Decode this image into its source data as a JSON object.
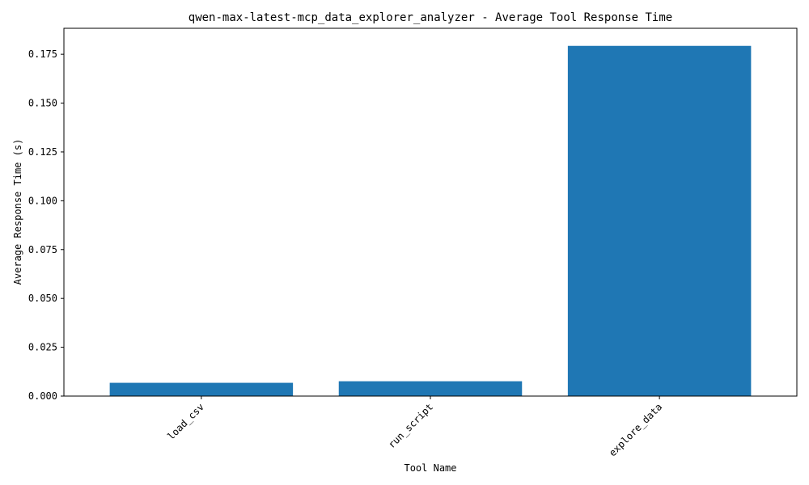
{
  "chart_data": {
    "type": "bar",
    "title": "qwen-max-latest-mcp_data_explorer_analyzer - Average Tool Response Time",
    "xlabel": "Tool Name",
    "ylabel": "Average Response Time (s)",
    "categories": [
      "load_csv",
      "run_script",
      "explore_data"
    ],
    "values": [
      0.0068,
      0.0076,
      0.1793
    ],
    "ylim": [
      0,
      0.1883
    ],
    "yticks": [
      0.0,
      0.025,
      0.05,
      0.075,
      0.1,
      0.125,
      0.15,
      0.175
    ],
    "ytick_labels": [
      "0.000",
      "0.025",
      "0.050",
      "0.075",
      "0.100",
      "0.125",
      "0.150",
      "0.175"
    ],
    "grid": false,
    "bar_color": "#1f77b4",
    "xtick_rotation_deg": 45
  }
}
